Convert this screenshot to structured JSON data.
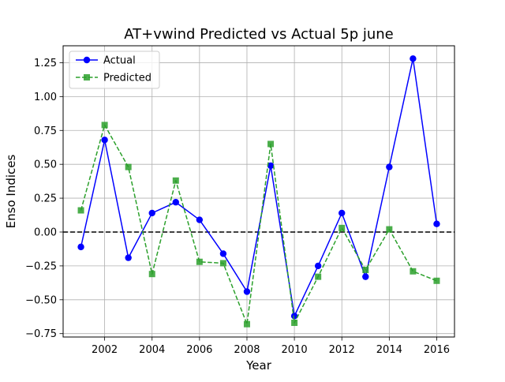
{
  "chart_data": {
    "type": "line",
    "title": "AT+vwind Predicted vs Actual 5p june",
    "xlabel": "Year",
    "ylabel": "Enso Indices",
    "xlim": [
      2000.25,
      2016.75
    ],
    "ylim": [
      -0.775,
      1.375
    ],
    "x_ticks": [
      2002,
      2004,
      2006,
      2008,
      2010,
      2012,
      2014,
      2016
    ],
    "y_ticks": [
      -0.75,
      -0.5,
      -0.25,
      0.0,
      0.25,
      0.5,
      0.75,
      1.0,
      1.25
    ],
    "y_tick_labels": [
      "−0.75",
      "−0.50",
      "−0.25",
      "0.00",
      "0.25",
      "0.50",
      "0.75",
      "1.00",
      "1.25"
    ],
    "grid": true,
    "legend_position": "top-left",
    "reference_line": {
      "y": 0.0,
      "style": "dashed",
      "color": "#000000"
    },
    "x": [
      2001,
      2002,
      2003,
      2004,
      2005,
      2006,
      2007,
      2008,
      2009,
      2010,
      2011,
      2012,
      2013,
      2014,
      2015,
      2016
    ],
    "series": [
      {
        "name": "Actual",
        "color": "#0000ff",
        "line_style": "solid",
        "marker": "circle",
        "values": [
          -0.11,
          0.68,
          -0.19,
          0.14,
          0.22,
          0.09,
          -0.16,
          -0.44,
          0.49,
          -0.62,
          -0.25,
          0.14,
          -0.33,
          0.48,
          1.28,
          0.06
        ]
      },
      {
        "name": "Predicted",
        "color": "#2ca02c",
        "line_style": "dashed",
        "marker": "square",
        "values": [
          0.16,
          0.79,
          0.48,
          -0.31,
          0.38,
          -0.22,
          -0.23,
          -0.68,
          0.65,
          -0.67,
          -0.33,
          0.03,
          -0.28,
          0.02,
          -0.29,
          -0.36
        ]
      }
    ]
  }
}
